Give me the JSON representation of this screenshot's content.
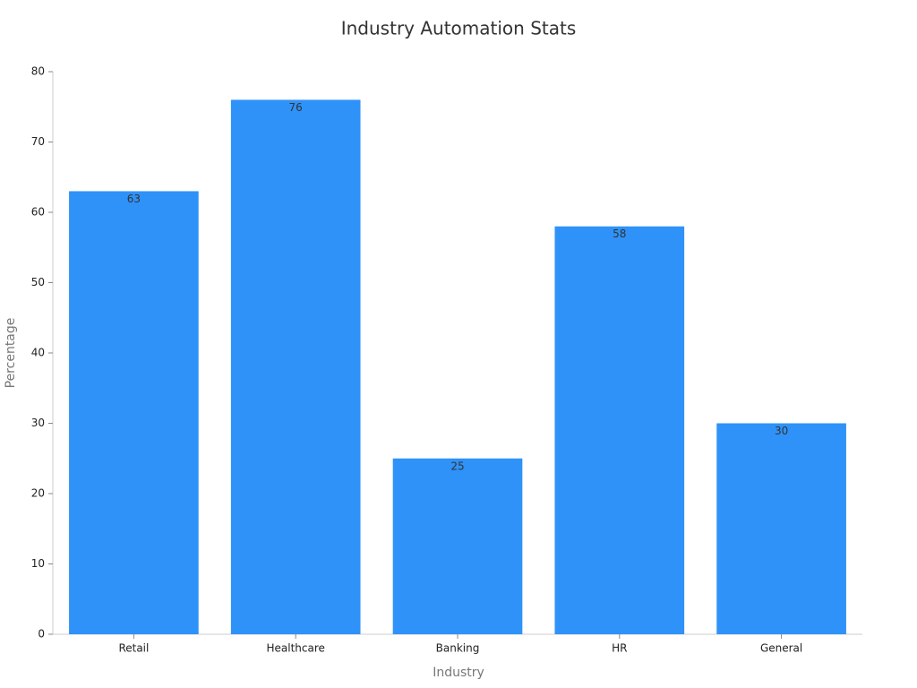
{
  "chart_data": {
    "type": "bar",
    "title": "Industry Automation Stats",
    "x_label": "Industry",
    "y_label": "Percentage",
    "categories": [
      "Retail",
      "Healthcare",
      "Banking",
      "HR",
      "General"
    ],
    "values": [
      63,
      76,
      25,
      58,
      30
    ],
    "color": "#2f92f8",
    "ylim": [
      0,
      80
    ],
    "yticks": [
      0,
      10,
      20,
      30,
      40,
      50,
      60,
      70,
      80
    ],
    "grid": false
  }
}
